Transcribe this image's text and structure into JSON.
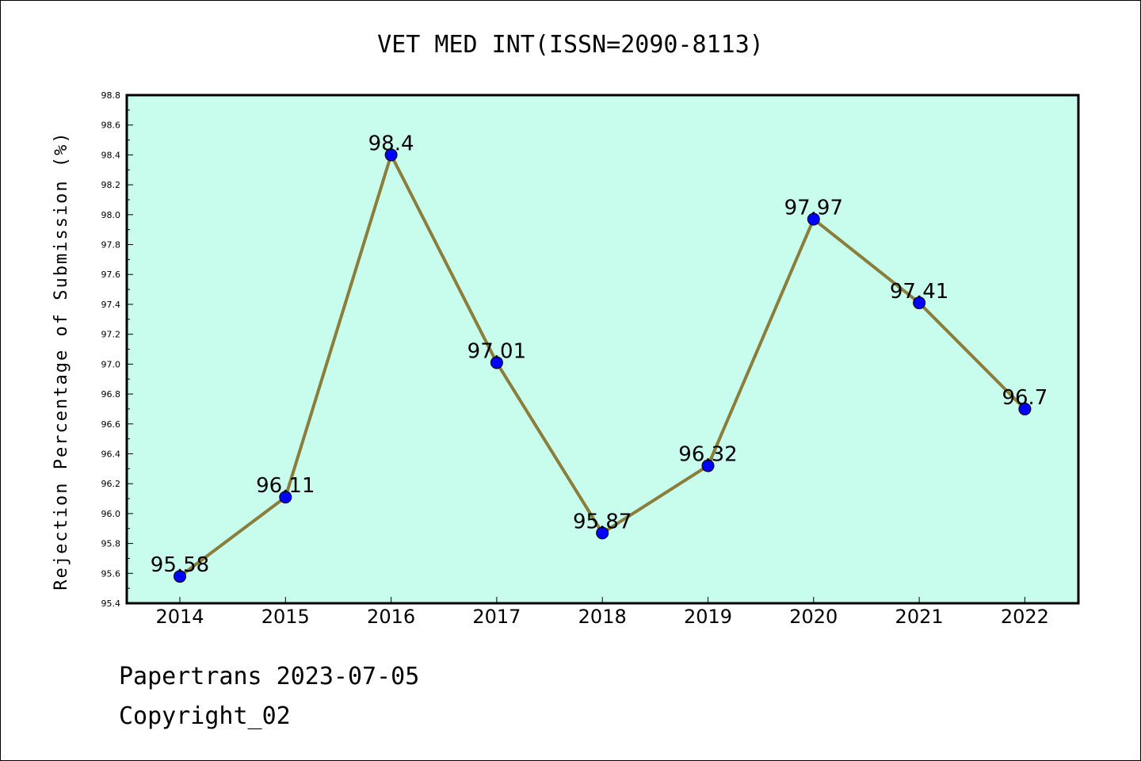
{
  "chart_data": {
    "type": "line",
    "title": "VET MED INT(ISSN=2090-8113)",
    "ylabel": "Rejection Percentage of Submission (%)",
    "xlabel": "",
    "categories": [
      "2014",
      "2015",
      "2016",
      "2017",
      "2018",
      "2019",
      "2020",
      "2021",
      "2022"
    ],
    "values": [
      95.58,
      96.11,
      98.4,
      97.01,
      95.87,
      96.32,
      97.97,
      97.41,
      96.7
    ],
    "data_labels": [
      "95.58",
      "96.11",
      "98.4",
      "97.01",
      "95.87",
      "96.32",
      "97.97",
      "97.41",
      "96.7"
    ],
    "ylim": [
      95.4,
      98.8
    ],
    "yticks": [
      "95.4",
      "95.6",
      "95.8",
      "96.0",
      "96.2",
      "96.4",
      "96.6",
      "96.8",
      "97.0",
      "97.2",
      "97.4",
      "97.6",
      "97.8",
      "98.0",
      "98.2",
      "98.4",
      "98.6",
      "98.8"
    ],
    "grid": false,
    "colors": {
      "plot_background": "#c8fced",
      "line": "#8b7d3a",
      "marker": "#0000ff"
    }
  },
  "footer": {
    "line1": "Papertrans 2023-07-05",
    "line2": "Copyright_02"
  }
}
